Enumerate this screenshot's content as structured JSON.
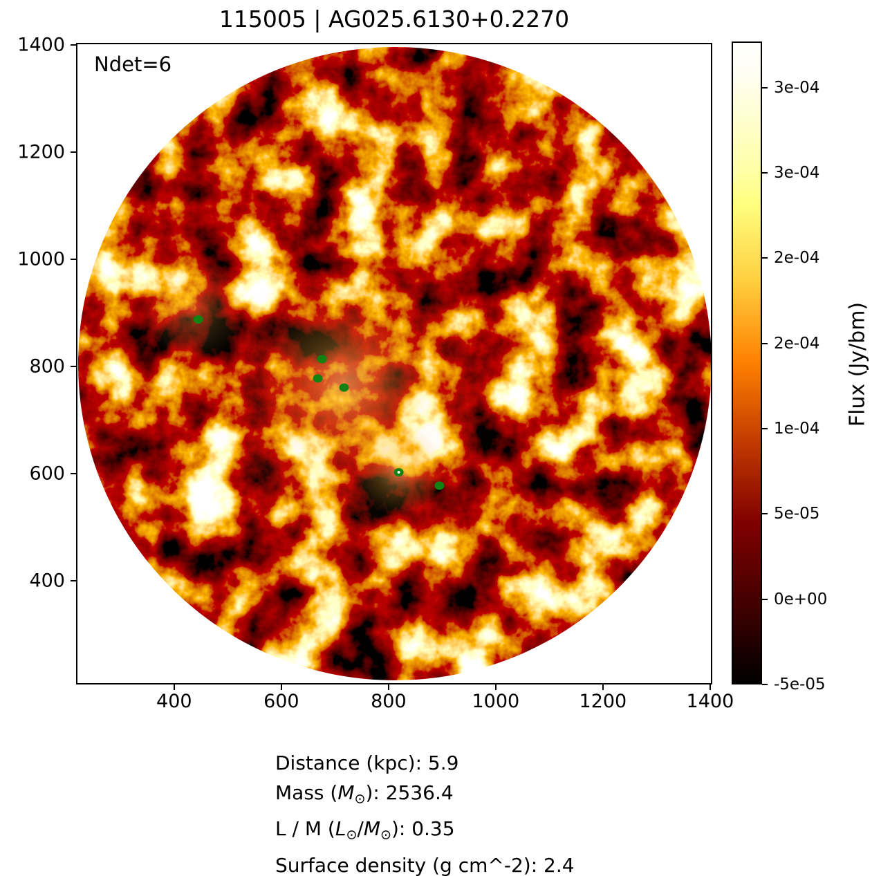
{
  "title": "115005 | AG025.6130+0.2270",
  "annotation": "Ndet=6",
  "chart_data": {
    "type": "heatmap",
    "title": "115005 | AG025.6130+0.2270",
    "annotation": "Ndet=6",
    "description": "Circular radio-continuum flux map shown with afmhot-style colormap noise texture; white background outside the circular field; green dots mark detections",
    "x_ticks": [
      400,
      600,
      800,
      1000,
      1200,
      1400
    ],
    "y_ticks": [
      1400,
      1200,
      1000,
      800,
      600,
      400
    ],
    "x_range": [
      217,
      1404
    ],
    "y_range": [
      207,
      1404
    ],
    "grid": false,
    "colormap": {
      "name": "afmhot",
      "stops": [
        "#000000",
        "#800000",
        "#ff8000",
        "#ffff80",
        "#ffffff"
      ]
    },
    "colorbar": {
      "label": "Flux (Jy/bm)",
      "orientation": "vertical",
      "range": [
        -5e-05,
        0.000327
      ],
      "ticks": [
        {
          "value": 0.0003,
          "label": "3e-04"
        },
        {
          "value": 0.00025,
          "label": "3e-04"
        },
        {
          "value": 0.0002,
          "label": "2e-04"
        },
        {
          "value": 0.00015,
          "label": "2e-04"
        },
        {
          "value": 0.0001,
          "label": "1e-04"
        },
        {
          "value": 5e-05,
          "label": "5e-05"
        },
        {
          "value": 0.0,
          "label": "0e+00"
        },
        {
          "value": -5e-05,
          "label": "-5e-05"
        }
      ]
    },
    "detections": {
      "count": 6,
      "marker_color": "#128312",
      "points": [
        {
          "x": 445,
          "y": 888
        },
        {
          "x": 676,
          "y": 814
        },
        {
          "x": 668,
          "y": 778
        },
        {
          "x": 717,
          "y": 761
        },
        {
          "x": 819,
          "y": 603,
          "bright_core": true
        },
        {
          "x": 895,
          "y": 578
        }
      ]
    }
  },
  "info": {
    "lines": [
      [
        {
          "t": "Distance (kpc): 5.9"
        }
      ],
      [
        {
          "t": "Mass ("
        },
        {
          "t": "M",
          "style": "italic"
        },
        {
          "t": "⊙",
          "style": "sub"
        },
        {
          "t": "): 2536.4"
        }
      ],
      [
        {
          "t": "L / M ("
        },
        {
          "t": "L",
          "style": "italic"
        },
        {
          "t": "⊙",
          "style": "sub"
        },
        {
          "t": "/"
        },
        {
          "t": "M",
          "style": "italic"
        },
        {
          "t": "⊙",
          "style": "sub"
        },
        {
          "t": "): 0.35"
        }
      ],
      [
        {
          "t": "Surface density (g cm^-2): 2.4"
        }
      ]
    ]
  }
}
